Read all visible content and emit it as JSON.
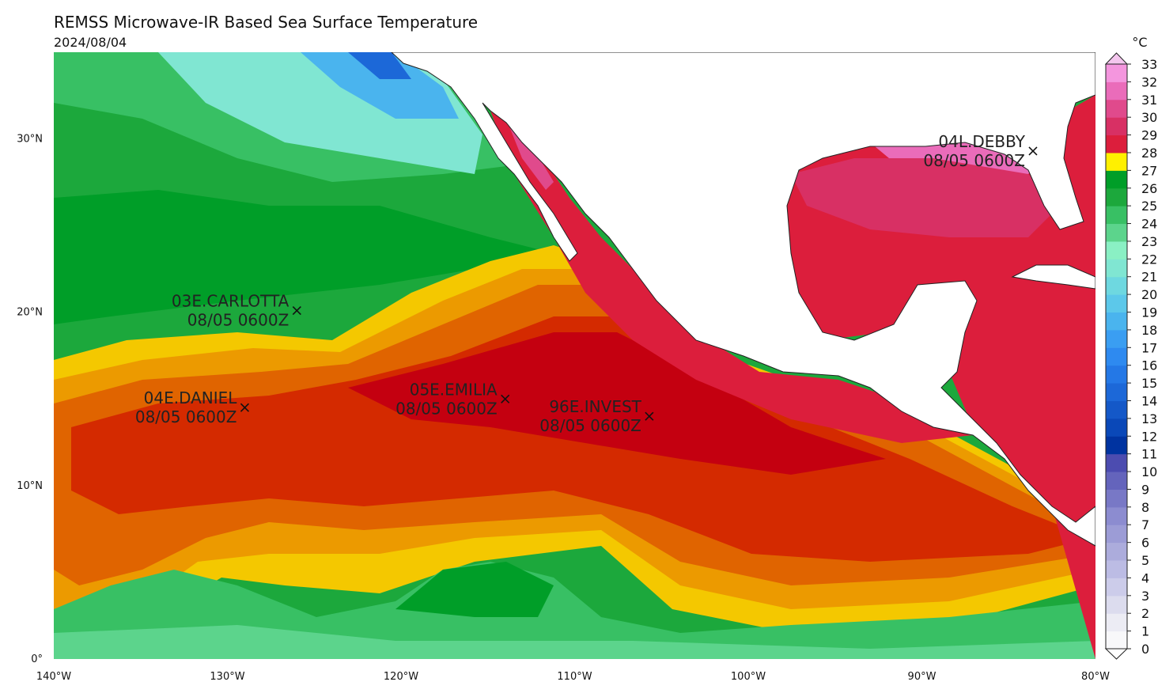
{
  "header": {
    "title": "REMSS Microwave-IR Based Sea Surface Temperature",
    "date": "2024/08/04"
  },
  "map": {
    "lon_range": [
      -140,
      -80
    ],
    "lat_range": [
      0,
      35
    ],
    "lon_ticks": [
      {
        "value": -140,
        "label": "140°W"
      },
      {
        "value": -130,
        "label": "130°W"
      },
      {
        "value": -120,
        "label": "120°W"
      },
      {
        "value": -110,
        "label": "110°W"
      },
      {
        "value": -100,
        "label": "100°W"
      },
      {
        "value": -90,
        "label": "90°W"
      },
      {
        "value": -80,
        "label": "80°W"
      }
    ],
    "lat_ticks": [
      {
        "value": 0,
        "label": "0°"
      },
      {
        "value": 10,
        "label": "10°N"
      },
      {
        "value": 20,
        "label": "20°N"
      },
      {
        "value": 30,
        "label": "30°N"
      }
    ],
    "storms": [
      {
        "name": "03E.CARLOTTA",
        "time": "08/05 0600Z",
        "lon": -126.0,
        "lat": 20.1
      },
      {
        "name": "04E.DANIEL",
        "time": "08/05 0600Z",
        "lon": -129.0,
        "lat": 14.5
      },
      {
        "name": "05E.EMILIA",
        "time": "08/05 0600Z",
        "lon": -114.0,
        "lat": 15.0
      },
      {
        "name": "96E.INVEST",
        "time": "08/05 0600Z",
        "lon": -105.7,
        "lat": 14.0
      },
      {
        "name": "04L.DEBBY",
        "time": "08/05 0600Z",
        "lon": -83.6,
        "lat": 29.3
      }
    ]
  },
  "colorbar": {
    "unit": "°C",
    "min": 0,
    "max": 33,
    "tick_labels": [
      "0",
      "1",
      "2",
      "3",
      "4",
      "5",
      "6",
      "7",
      "8",
      "9",
      "10",
      "11",
      "12",
      "13",
      "14",
      "15",
      "16",
      "17",
      "18",
      "19",
      "20",
      "21",
      "22",
      "23",
      "24",
      "25",
      "26",
      "27",
      "28",
      "29",
      "30",
      "31",
      "32",
      "33"
    ],
    "bin_colors": [
      "#f8f8fa",
      "#ececf4",
      "#dcdcee",
      "#ccccea",
      "#bcbce4",
      "#acacdc",
      "#9c9cd6",
      "#8c8cd0",
      "#7878c6",
      "#6464bc",
      "#4c4cb0",
      "#0033a0",
      "#0a48b8",
      "#1458c8",
      "#1c68d8",
      "#2478e6",
      "#2e8af0",
      "#3a9ef2",
      "#4ab4ee",
      "#5cc8ea",
      "#6ed8e0",
      "#80e6d2",
      "#8af0c4",
      "#5cd48c",
      "#38c064",
      "#1ca83c",
      "#009e28",
      "#fff000",
      "#f4c800",
      "#ec9a00",
      "#e06400",
      "#d42a00",
      "#c40010"
    ],
    "extend_colors": [
      "#ffffff",
      "#f4c6ee"
    ],
    "upper_bins": [
      "#dc1e3c",
      "#d83064",
      "#e04a8c",
      "#ea6cba",
      "#f496de"
    ]
  },
  "chart_data": {
    "type": "heatmap",
    "title": "REMSS Microwave-IR Based Sea Surface Temperature",
    "subtitle": "2024/08/04",
    "x_range_lon": [
      -140,
      -80
    ],
    "y_range_lat": [
      0,
      35
    ],
    "colorbar_unit": "°C",
    "colorbar_range": [
      0,
      33
    ],
    "storm_markers": [
      {
        "label": "03E.CARLOTTA",
        "time": "08/05 0600Z"
      },
      {
        "label": "04E.DANIEL",
        "time": "08/05 0600Z"
      },
      {
        "label": "05E.EMILIA",
        "time": "08/05 0600Z"
      },
      {
        "label": "96E.INVEST",
        "time": "08/05 0600Z"
      },
      {
        "label": "04L.DEBBY",
        "time": "08/05 0600Z"
      }
    ]
  }
}
